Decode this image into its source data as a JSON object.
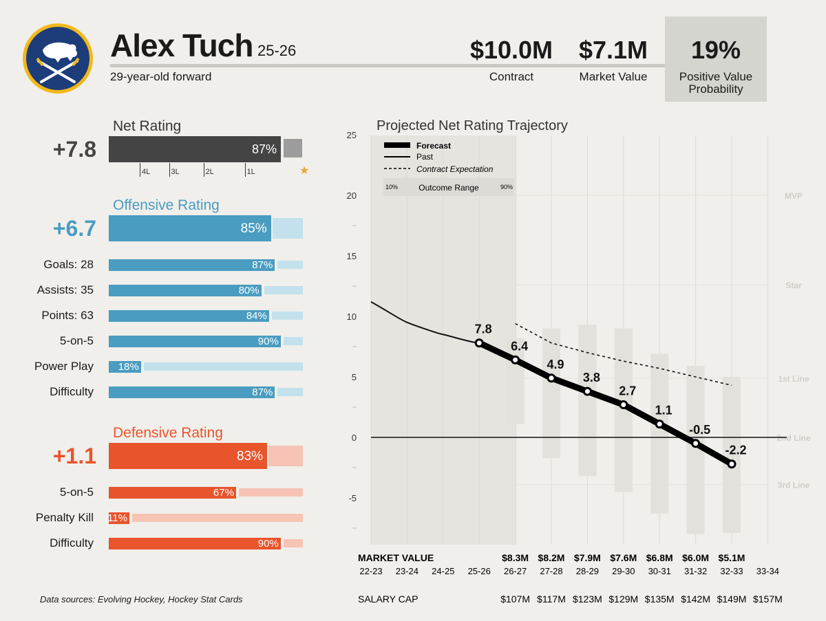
{
  "player": {
    "name": "Alex Tuch",
    "season": "25-26",
    "description": "29-year-old forward"
  },
  "header_stats": [
    {
      "value": "$10.0M",
      "label": "Contract"
    },
    {
      "value": "$7.1M",
      "label": "Market Value"
    },
    {
      "value": "19%",
      "label": "Positive Value Probability"
    }
  ],
  "colors": {
    "net": "#444444",
    "offense": "#4a9cc0",
    "offense_light": "#c2e1ec",
    "defense": "#e8542c",
    "defense_light": "#f7c3b4",
    "star": "#e8a631",
    "background": "#f0efeb"
  },
  "net_rating": {
    "title": "Net Rating",
    "value": "+7.8",
    "percentile": 87,
    "percentile_label": "87%",
    "ticks": [
      {
        "label": "4L",
        "pct": 18
      },
      {
        "label": "3L",
        "pct": 35
      },
      {
        "label": "2L",
        "pct": 55
      },
      {
        "label": "1L",
        "pct": 79
      }
    ],
    "star_icon": "star-icon"
  },
  "offense": {
    "title": "Offensive Rating",
    "value": "+6.7",
    "percentile": 85,
    "percentile_label": "85%",
    "rows": [
      {
        "label": "Goals: 28",
        "pct": 87,
        "pct_label": "87%"
      },
      {
        "label": "Assists: 35",
        "pct": 80,
        "pct_label": "80%"
      },
      {
        "label": "Points: 63",
        "pct": 84,
        "pct_label": "84%"
      },
      {
        "label": "5-on-5",
        "pct": 90,
        "pct_label": "90%"
      },
      {
        "label": "Power Play",
        "pct": 18,
        "pct_label": "18%"
      },
      {
        "label": "Difficulty",
        "pct": 87,
        "pct_label": "87%"
      }
    ]
  },
  "defense": {
    "title": "Defensive Rating",
    "value": "+1.1",
    "percentile": 83,
    "percentile_label": "83%",
    "rows": [
      {
        "label": "5-on-5",
        "pct": 67,
        "pct_label": "67%"
      },
      {
        "label": "Penalty Kill",
        "pct": 11,
        "pct_label": "11%"
      },
      {
        "label": "Difficulty",
        "pct": 90,
        "pct_label": "90%"
      }
    ]
  },
  "source_note": "Data sources: Evolving Hockey, Hockey Stat Cards",
  "chart_data": {
    "type": "line",
    "title": "Projected Net Rating Trajectory",
    "ylim": [
      -9,
      25
    ],
    "y_ticks": [
      25,
      20,
      15,
      10,
      5,
      0,
      -5
    ],
    "x": [
      "22-23",
      "23-24",
      "24-25",
      "25-26",
      "26-27",
      "27-28",
      "28-29",
      "29-30",
      "30-31",
      "31-32",
      "32-33",
      "33-34"
    ],
    "series": [
      {
        "name": "Past",
        "x": [
          "22-23",
          "23-24",
          "24-25",
          "25-26"
        ],
        "values": [
          11.2,
          9.5,
          8.5,
          7.8
        ]
      },
      {
        "name": "Forecast",
        "x": [
          "25-26",
          "26-27",
          "27-28",
          "28-29",
          "29-30",
          "30-31",
          "31-32",
          "32-33"
        ],
        "values": [
          7.8,
          6.4,
          4.9,
          3.8,
          2.7,
          1.1,
          -0.5,
          -2.2
        ],
        "labels": [
          "7.8",
          "6.4",
          "4.9",
          "3.8",
          "2.7",
          "1.1",
          "-0.5",
          "-2.2"
        ]
      },
      {
        "name": "Contract Expectation",
        "x": [
          "26-27",
          "27-28",
          "28-29",
          "29-30",
          "30-31",
          "31-32",
          "32-33"
        ],
        "values": [
          9.4,
          7.8,
          7.0,
          6.3,
          5.7,
          5.0,
          4.3
        ]
      }
    ],
    "outcome_range": {
      "name": "Outcome Range",
      "low_label": "10%",
      "high_label": "90%",
      "x": [
        "26-27",
        "27-28",
        "28-29",
        "29-30",
        "30-31",
        "31-32",
        "32-33"
      ],
      "low": [
        1.1,
        -1.7,
        -3.2,
        -4.5,
        -6.3,
        -8.0,
        -7.9
      ],
      "high": [
        8.2,
        9.0,
        9.3,
        9.0,
        6.9,
        5.9,
        5.0
      ]
    },
    "past_shade": [
      "22-23",
      "25-26"
    ],
    "tier_labels": [
      {
        "label": "MVP",
        "y": 20
      },
      {
        "label": "Star",
        "y": 12.6
      },
      {
        "label": "1st Line",
        "y": 4.9
      },
      {
        "label": "2nd Line",
        "y": 0
      },
      {
        "label": "3rd Line",
        "y": -3.9
      }
    ],
    "legend": {
      "forecast": "Forecast",
      "past": "Past",
      "contract": "Contract Expectation",
      "placement": "top-left"
    },
    "market_value": {
      "label": "MARKET VALUE",
      "values": [
        "",
        "",
        "",
        "",
        "$8.3M",
        "$8.2M",
        "$7.9M",
        "$7.6M",
        "$6.8M",
        "$6.0M",
        "$5.1M",
        ""
      ]
    },
    "salary_cap": {
      "label": "SALARY CAP",
      "values": [
        "",
        "",
        "",
        "",
        "$107M",
        "$117M",
        "$123M",
        "$129M",
        "$135M",
        "$142M",
        "$149M",
        "$157M"
      ]
    },
    "grid": true
  }
}
